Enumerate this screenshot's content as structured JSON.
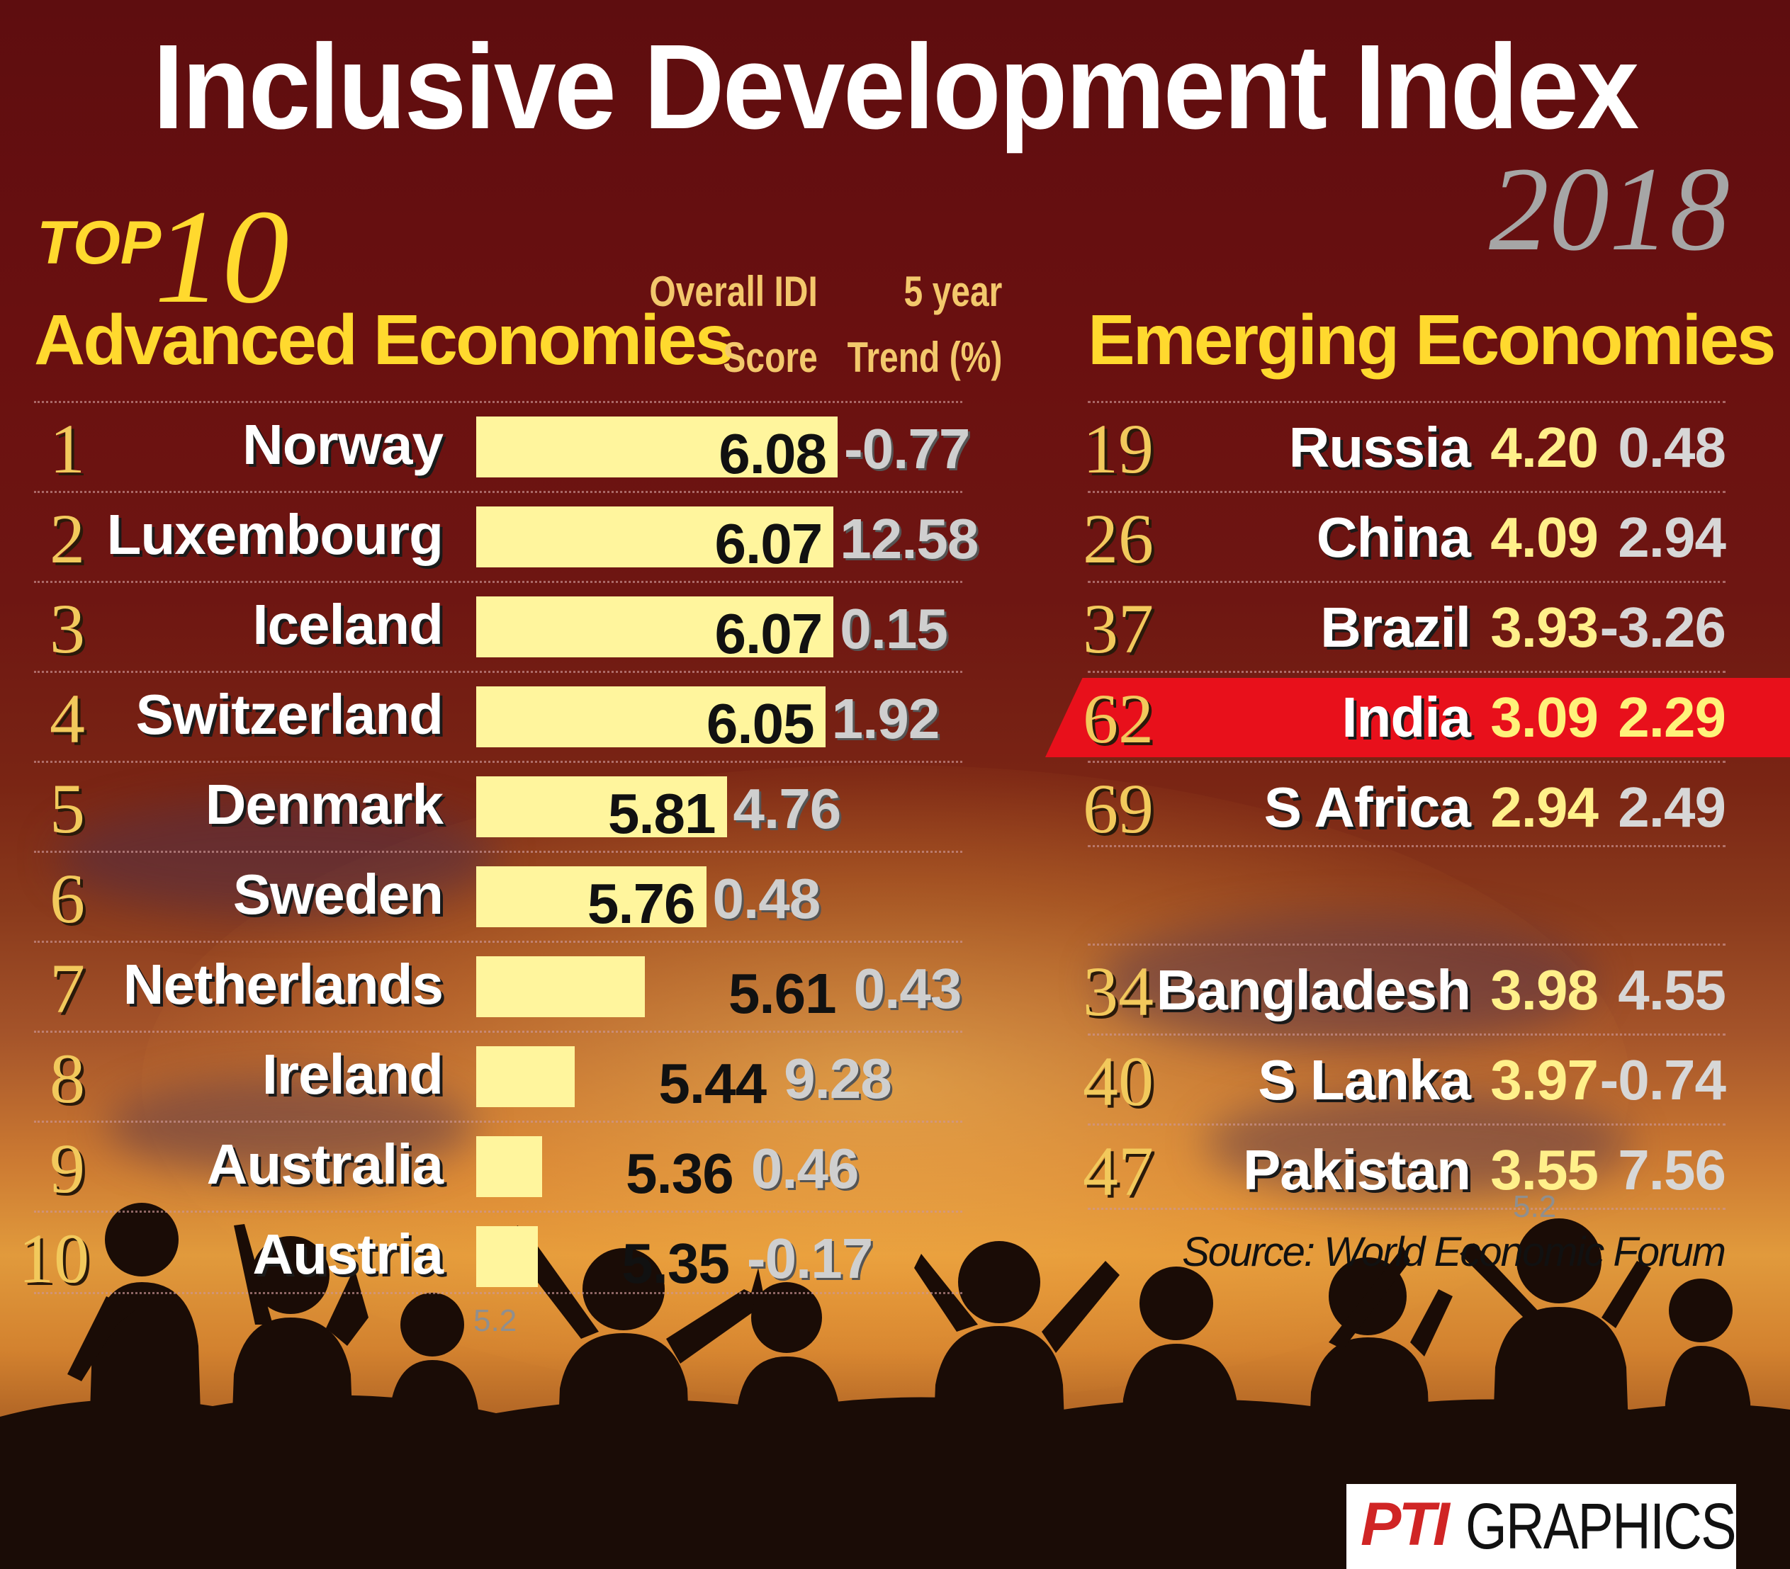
{
  "title": "Inclusive Development Index",
  "year": "2018",
  "top_label": "TOP",
  "top_number": "10",
  "advanced_title": "Advanced Economies",
  "col_score": [
    "Overall IDI",
    "Score"
  ],
  "col_trend": [
    "5 year",
    "Trend (%)"
  ],
  "emerging_title": "Emerging Economies",
  "source": "Source: World Economic Forum",
  "logo_pti": "PTI",
  "logo_text": "GRAPHICS",
  "colors": {
    "bar": "#fff59d",
    "highlight": "#e8101b",
    "gold": "#ffd92e"
  },
  "chart_data": {
    "type": "bar",
    "orientation": "horizontal",
    "xlim": [
      5.2,
      6.08
    ],
    "tick_labels": [
      "5.2"
    ],
    "advanced": [
      {
        "rank": "1",
        "country": "Norway",
        "score": 6.08,
        "score_label": "6.08",
        "trend": "-0.77"
      },
      {
        "rank": "2",
        "country": "Luxembourg",
        "score": 6.07,
        "score_label": "6.07",
        "trend": "12.58"
      },
      {
        "rank": "3",
        "country": "Iceland",
        "score": 6.07,
        "score_label": "6.07",
        "trend": "0.15"
      },
      {
        "rank": "4",
        "country": "Switzerland",
        "score": 6.05,
        "score_label": "6.05",
        "trend": "1.92"
      },
      {
        "rank": "5",
        "country": "Denmark",
        "score": 5.81,
        "score_label": "5.81",
        "trend": "4.76"
      },
      {
        "rank": "6",
        "country": "Sweden",
        "score": 5.76,
        "score_label": "5.76",
        "trend": "0.48"
      },
      {
        "rank": "7",
        "country": "Netherlands",
        "score": 5.61,
        "score_label": "5.61",
        "trend": "0.43"
      },
      {
        "rank": "8",
        "country": "Ireland",
        "score": 5.44,
        "score_label": "5.44",
        "trend": "9.28"
      },
      {
        "rank": "9",
        "country": "Australia",
        "score": 5.36,
        "score_label": "5.36",
        "trend": "0.46"
      },
      {
        "rank": "10",
        "country": "Austria",
        "score": 5.35,
        "score_label": "5.35",
        "trend": "-0.17"
      }
    ],
    "emerging": [
      {
        "rank": "19",
        "country": "Russia",
        "score": "4.20",
        "trend": "0.48",
        "highlight": false
      },
      {
        "rank": "26",
        "country": "China",
        "score": "4.09",
        "trend": "2.94",
        "highlight": false
      },
      {
        "rank": "37",
        "country": "Brazil",
        "score": "3.93",
        "trend": "-3.26",
        "highlight": false
      },
      {
        "rank": "62",
        "country": "India",
        "score": "3.09",
        "trend": "2.29",
        "highlight": true
      },
      {
        "rank": "69",
        "country": "S Africa",
        "score": "2.94",
        "trend": "2.49",
        "highlight": false
      }
    ],
    "neighbours": [
      {
        "rank": "34",
        "country": "Bangladesh",
        "score": "3.98",
        "trend": "4.55"
      },
      {
        "rank": "40",
        "country": "S Lanka",
        "score": "3.97",
        "trend": "-0.74"
      },
      {
        "rank": "47",
        "country": "Pakistan",
        "score": "3.55",
        "trend": "7.56"
      }
    ]
  }
}
